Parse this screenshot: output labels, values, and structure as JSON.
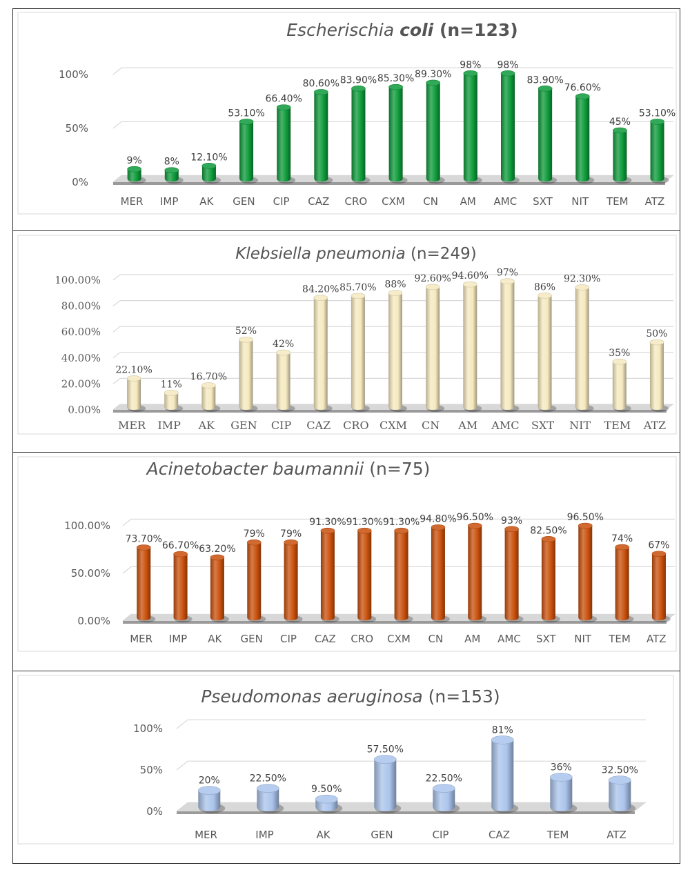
{
  "chart_data": [
    {
      "type": "bar",
      "title_parts": [
        {
          "text": "Escherischia ",
          "italic": true,
          "bold": false
        },
        {
          "text": "coli",
          "italic": true,
          "bold": true
        },
        {
          "text": " (n=123)",
          "italic": false,
          "bold": true
        }
      ],
      "categories": [
        "MER",
        "IMP",
        "AK",
        "GEN",
        "CIP",
        "CAZ",
        "CRO",
        "CXM",
        "CN",
        "AM",
        "AMC",
        "SXT",
        "NIT",
        "TEM",
        "ATZ"
      ],
      "values": [
        9,
        8,
        12.1,
        53.1,
        66.4,
        80.6,
        83.9,
        85.3,
        89.3,
        98,
        98,
        83.9,
        76.6,
        45,
        53.1
      ],
      "value_labels": [
        "9%",
        "8%",
        "12.10%",
        "53.10%",
        "66.40%",
        "80.60%",
        "83.90%",
        "85.30%",
        "89.30%",
        "98%",
        "98%",
        "83.90%",
        "76.60%",
        "45%",
        "53.10%"
      ],
      "yticks": [
        0,
        50,
        100
      ],
      "ytick_labels": [
        "0%",
        "50%",
        "100%"
      ],
      "ylim": [
        0,
        100
      ],
      "color": "#0e9a3a",
      "grid": true
    },
    {
      "type": "bar",
      "title_parts": [
        {
          "text": "Klebsiella pneumonia",
          "italic": true,
          "bold": false
        },
        {
          "text": "  (n=249)",
          "italic": false,
          "bold": false
        }
      ],
      "categories": [
        "MER",
        "IMP",
        "AK",
        "GEN",
        "CIP",
        "CAZ",
        "CRO",
        "CXM",
        "CN",
        "AM",
        "AMC",
        "SXT",
        "NIT",
        "TEM",
        "ATZ"
      ],
      "values": [
        22.1,
        11,
        16.7,
        52,
        42,
        84.2,
        85.7,
        88,
        92.6,
        94.6,
        97,
        86,
        92.3,
        35,
        50
      ],
      "value_labels": [
        "22.10%",
        "11%",
        "16.70%",
        "52%",
        "42%",
        "84.20%",
        "85.70%",
        "88%",
        "92.60%",
        "94.60%",
        "97%",
        "86%",
        "92.30%",
        "35%",
        "50%"
      ],
      "yticks": [
        0,
        20,
        40,
        60,
        80,
        100
      ],
      "ytick_labels": [
        "0.00%",
        "20.00%",
        "40.00%",
        "60.00%",
        "80.00%",
        "100.00%"
      ],
      "ylim": [
        0,
        100
      ],
      "color": "#f5e9bf",
      "grid": true
    },
    {
      "type": "bar",
      "title_parts": [
        {
          "text": "Acinetobacter baumannii",
          "italic": true,
          "bold": false
        },
        {
          "text": " (n=75)",
          "italic": false,
          "bold": false
        }
      ],
      "categories": [
        "MER",
        "IMP",
        "AK",
        "GEN",
        "CIP",
        "CAZ",
        "CRO",
        "CXM",
        "CN",
        "AM",
        "AMC",
        "SXT",
        "NIT",
        "TEM",
        "ATZ"
      ],
      "values": [
        73.7,
        66.7,
        63.2,
        79,
        79,
        91.3,
        91.3,
        91.3,
        94.8,
        96.5,
        93,
        82.5,
        96.5,
        74,
        67
      ],
      "value_labels": [
        "73.70%",
        "66.70%",
        "63.20%",
        "79%",
        "79%",
        "91.30%",
        "91.30%",
        "91.30%",
        "94.80%",
        "96.50%",
        "93%",
        "82.50%",
        "96.50%",
        "74%",
        "67%"
      ],
      "yticks": [
        0,
        50,
        100
      ],
      "ytick_labels": [
        "0.00%",
        "50.00%",
        "100.00%"
      ],
      "ylim": [
        0,
        100
      ],
      "color": "#c9500c",
      "grid": true
    },
    {
      "type": "bar",
      "title_parts": [
        {
          "text": "Pseudomonas aeruginosa",
          "italic": true,
          "bold": false
        },
        {
          "text": " (n=153)",
          "italic": false,
          "bold": false
        }
      ],
      "categories": [
        "MER",
        "IMP",
        "AK",
        "GEN",
        "CIP",
        "CAZ",
        "TEM",
        "ATZ"
      ],
      "values": [
        20,
        22.5,
        9.5,
        57.5,
        22.5,
        81,
        36,
        32.5
      ],
      "value_labels": [
        "20%",
        "22.50%",
        "9.50%",
        "57.50%",
        "22.50%",
        "81%",
        "36%",
        "32.50%"
      ],
      "yticks": [
        0,
        50,
        100
      ],
      "ytick_labels": [
        "0%",
        "50%",
        "100%"
      ],
      "ylim": [
        0,
        100
      ],
      "color": "#aac4ec",
      "grid": true
    }
  ]
}
